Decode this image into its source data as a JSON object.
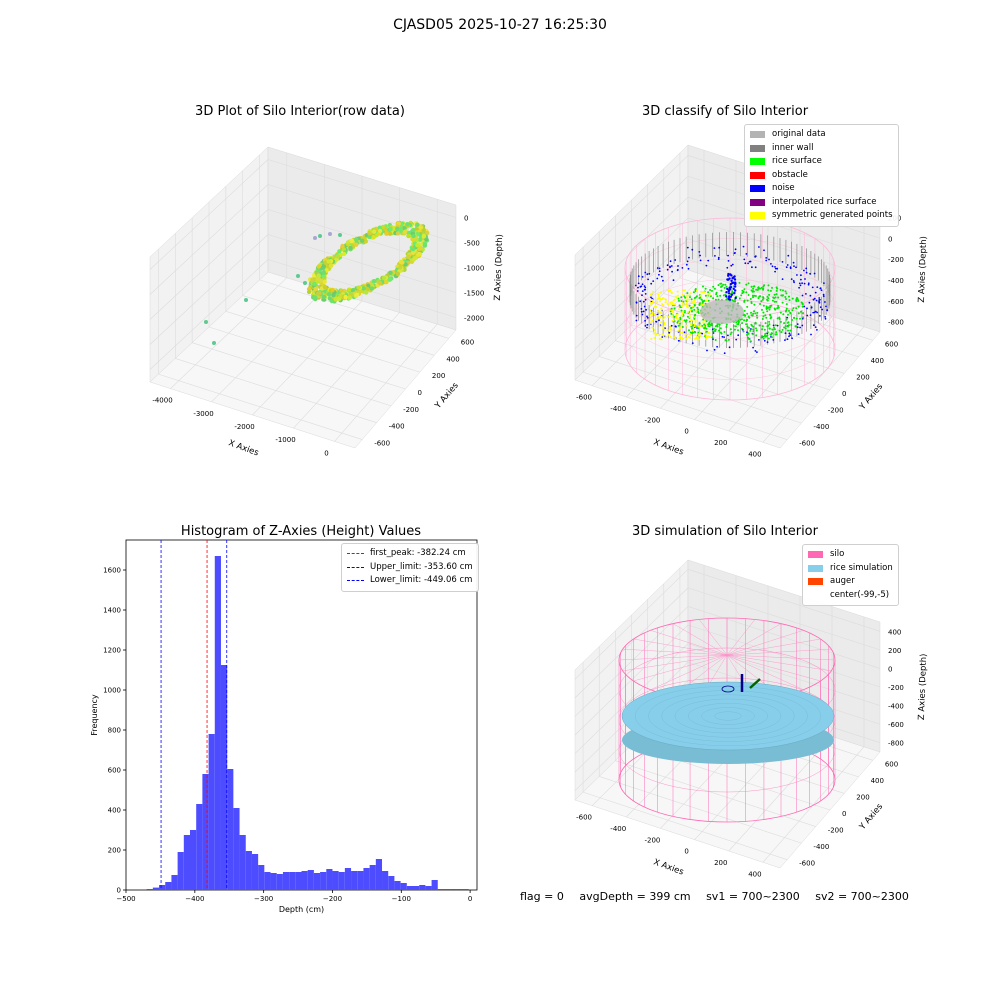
{
  "figure": {
    "suptitle": "CJASD05 2025-10-27 16:25:30"
  },
  "colors": {
    "silo": "#ff69b4",
    "rice_simulation": "#87ceeb",
    "auger": "#ff4500",
    "original_data": "#b3b3b3",
    "inner_wall": "#808080",
    "rice_surface": "#00ff00",
    "obstacle": "#ff0000",
    "noise": "#0000ff",
    "interpolated_rice_surface": "#800080",
    "symmetric_generated_points": "#ffff00",
    "histogram_bar": "#4d4dff"
  },
  "chart_data": [
    {
      "type": "scatter",
      "dimension": "3d",
      "title": "3D Plot of Silo Interior(row data)",
      "xlabel": "X Axies",
      "ylabel": "Y Axies",
      "zlabel": "Z Axies (Depth)",
      "xticks": [
        "-4000",
        "-3000",
        "-2000",
        "-1000",
        "0"
      ],
      "yticks": [
        "-600",
        "-400",
        "-200",
        "0",
        "200",
        "400",
        "600"
      ],
      "zticks": [
        "0",
        "-500",
        "-1000",
        "-1500",
        "-2000"
      ],
      "xlim": [
        -4300,
        600
      ],
      "ylim": [
        -700,
        700
      ],
      "zlim": [
        -2300,
        100
      ],
      "colormap": "viridis"
    },
    {
      "type": "scatter",
      "dimension": "3d",
      "title": "3D classify of Silo Interior",
      "xlabel": "X Axies",
      "ylabel": "Y Axies",
      "zlabel": "Z Axies (Depth)",
      "xticks": [
        "-600",
        "-400",
        "-200",
        "0",
        "200",
        "400"
      ],
      "yticks": [
        "-600",
        "-400",
        "-200",
        "0",
        "200",
        "400",
        "600"
      ],
      "zticks": [
        "200",
        "0",
        "-200",
        "-400",
        "-600",
        "-800"
      ],
      "xlim": [
        -700,
        500
      ],
      "ylim": [
        -700,
        700
      ],
      "zlim": [
        -900,
        300
      ],
      "legend": [
        "original data",
        "inner wall",
        "rice surface",
        "obstacle",
        "noise",
        "interpolated rice surface",
        "symmetric generated points"
      ],
      "legend_position": "top-right"
    },
    {
      "type": "bar",
      "title": "Histogram of Z-Axies (Height) Values",
      "xlabel": "Depth (cm)",
      "ylabel": "Frequency",
      "xlim": [
        -500,
        10
      ],
      "ylim": [
        0,
        1750
      ],
      "xticks": [
        -500,
        -400,
        -300,
        -200,
        -100,
        0
      ],
      "yticks": [
        0,
        200,
        400,
        600,
        800,
        1000,
        1200,
        1400,
        1600
      ],
      "bin_width": 9,
      "bin_left_edges": [
        -470,
        -461,
        -452,
        -443,
        -434,
        -425,
        -416,
        -407,
        -398,
        -389,
        -380,
        -371,
        -362,
        -353,
        -344,
        -335,
        -326,
        -317,
        -308,
        -299,
        -290,
        -281,
        -272,
        -263,
        -254,
        -245,
        -236,
        -227,
        -218,
        -209,
        -200,
        -191,
        -182,
        -173,
        -164,
        -155,
        -146,
        -137,
        -128,
        -119,
        -110,
        -101,
        -92,
        -83,
        -74,
        -65,
        -56,
        -47,
        -38,
        -29,
        -20,
        -11
      ],
      "values": [
        5,
        12,
        25,
        40,
        75,
        190,
        275,
        300,
        430,
        580,
        780,
        1670,
        1125,
        605,
        410,
        275,
        195,
        180,
        125,
        90,
        85,
        80,
        90,
        90,
        90,
        95,
        100,
        85,
        90,
        105,
        95,
        90,
        110,
        95,
        95,
        110,
        125,
        155,
        95,
        70,
        45,
        35,
        20,
        20,
        25,
        20,
        50,
        5,
        5,
        5,
        5,
        5
      ],
      "vlines": [
        {
          "label": "first_peak: -382.24 cm",
          "x": -382.24,
          "color": "#ff0000"
        },
        {
          "label": "Upper_limit: -353.60 cm",
          "x": -353.6,
          "color": "#0000ff"
        },
        {
          "label": "Lower_limit: -449.06 cm",
          "x": -449.06,
          "color": "#0000ff"
        }
      ],
      "legend_position": "top-right"
    },
    {
      "type": "scatter",
      "dimension": "3d",
      "title": "3D simulation of Silo Interior",
      "xlabel": "X Axies",
      "ylabel": "Y Axies",
      "zlabel": "Z Axies (Depth)",
      "xticks": [
        "-600",
        "-400",
        "-200",
        "0",
        "200",
        "400"
      ],
      "yticks": [
        "-600",
        "-400",
        "-200",
        "0",
        "200",
        "400",
        "600"
      ],
      "zticks": [
        "400",
        "200",
        "0",
        "-200",
        "-400",
        "-600",
        "-800"
      ],
      "xlim": [
        -700,
        500
      ],
      "ylim": [
        -700,
        700
      ],
      "zlim": [
        -900,
        500
      ],
      "legend": [
        "silo",
        "rice simulation",
        "auger",
        "center(-99,-5)"
      ],
      "legend_position": "top-right"
    }
  ],
  "status": {
    "flag": "flag = 0",
    "avg_depth": "avgDepth = 399 cm",
    "sv1": "sv1 = 700~2300",
    "sv2": "sv2 = 700~2300"
  }
}
